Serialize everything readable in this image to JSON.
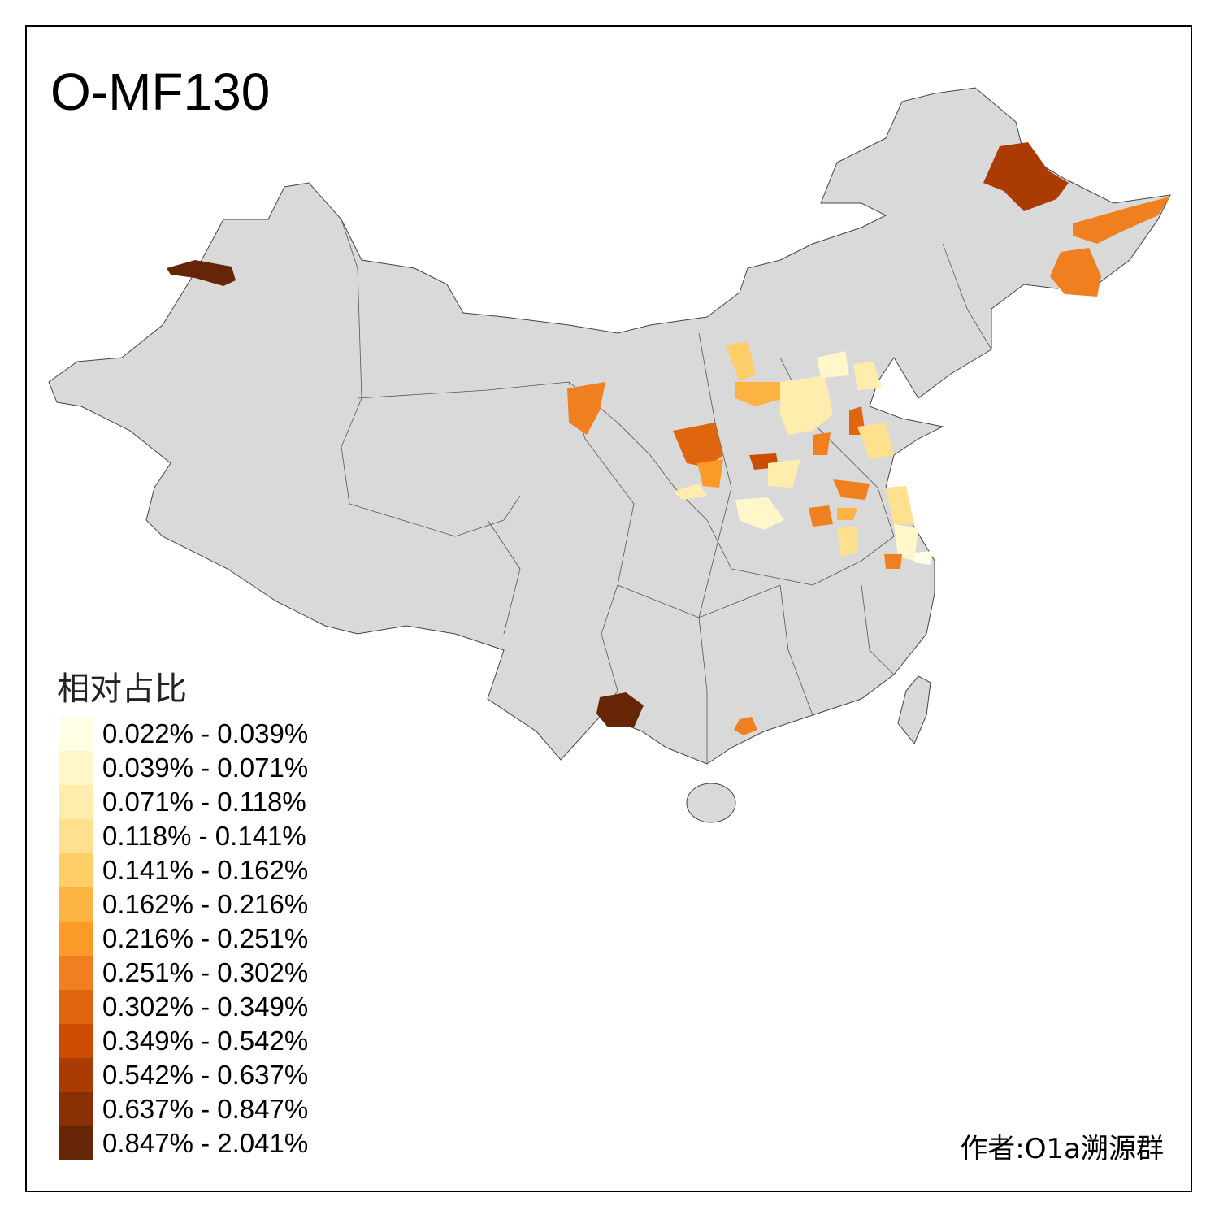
{
  "title": "O-MF130",
  "legend": {
    "title": "相对占比",
    "items": [
      {
        "label": "0.022% - 0.039%",
        "color": "#FFFFE5"
      },
      {
        "label": "0.039% - 0.071%",
        "color": "#FFF7C9"
      },
      {
        "label": "0.071% - 0.118%",
        "color": "#FEEDAD"
      },
      {
        "label": "0.118% - 0.141%",
        "color": "#FEE08F"
      },
      {
        "label": "0.141% - 0.162%",
        "color": "#FECE68"
      },
      {
        "label": "0.162% - 0.216%",
        "color": "#FDB342"
      },
      {
        "label": "0.216% - 0.251%",
        "color": "#FB9A29"
      },
      {
        "label": "0.251% - 0.302%",
        "color": "#F0801F"
      },
      {
        "label": "0.302% - 0.349%",
        "color": "#E0650F"
      },
      {
        "label": "0.349% - 0.542%",
        "color": "#CC4C02"
      },
      {
        "label": "0.542% - 0.637%",
        "color": "#AA3C03"
      },
      {
        "label": "0.637% - 0.847%",
        "color": "#882F04"
      },
      {
        "label": "0.847% - 2.041%",
        "color": "#662506"
      }
    ]
  },
  "credit": "作者:O1a溯源群",
  "colors": {
    "land": "#D9D9D9",
    "border": "#444444"
  }
}
